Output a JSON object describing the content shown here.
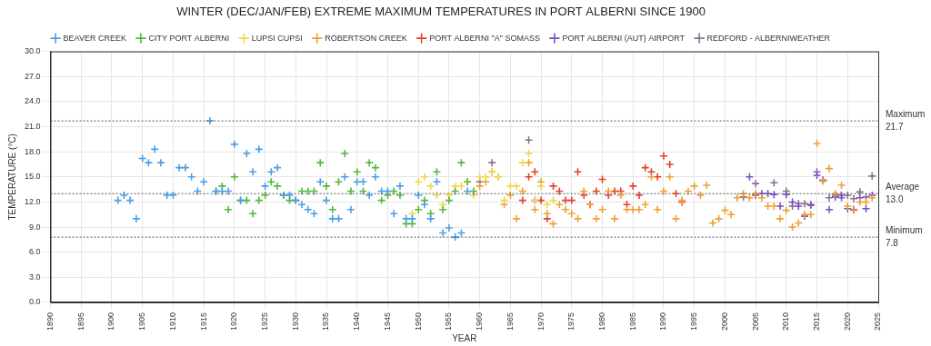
{
  "chart_data": {
    "type": "scatter",
    "title": "WINTER (DEC/JAN/FEB) EXTREME MAXIMUM TEMPERATURES IN PORT ALBERNI SINCE 1900",
    "x_label": "YEAR",
    "y_label": "TEMPERATURE (°C)",
    "marker": "cross",
    "grid": true,
    "legend": "top",
    "xlim": [
      1890,
      2025
    ],
    "xticks": [
      1890,
      1895,
      1900,
      1905,
      1910,
      1915,
      1920,
      1925,
      1930,
      1935,
      1940,
      1945,
      1950,
      1955,
      1960,
      1965,
      1970,
      1975,
      1980,
      1985,
      1990,
      1995,
      2000,
      2005,
      2010,
      2015,
      2020,
      2025
    ],
    "ylim": [
      0,
      30
    ],
    "yticks": [
      {
        "value": 0,
        "label": "0.0"
      },
      {
        "value": 3,
        "label": "3.0"
      },
      {
        "value": 6,
        "label": "6.0"
      },
      {
        "value": 9,
        "label": "9.0"
      },
      {
        "value": 12,
        "label": "12.0"
      },
      {
        "value": 15,
        "label": "15.0"
      },
      {
        "value": 18,
        "label": "18.0"
      },
      {
        "value": 21,
        "label": "21.0"
      },
      {
        "value": 24,
        "label": "24.0"
      },
      {
        "value": 27,
        "label": "27.0"
      },
      {
        "value": 30,
        "label": "30.0"
      }
    ],
    "annotations": [
      {
        "name": "Maximum",
        "value": 21.7,
        "label": "21.7"
      },
      {
        "name": "Average",
        "value": 13,
        "label": "13.0"
      },
      {
        "name": "Minimum",
        "value": 7.8,
        "label": "7.8"
      }
    ],
    "series": [
      {
        "name": "BEAVER CREEK",
        "color": "#4a9fe8",
        "x": [
          1901,
          1902,
          1903,
          1904,
          1905,
          1906,
          1907,
          1908,
          1909,
          1910,
          1911,
          1912,
          1913,
          1914,
          1915,
          1916,
          1917,
          1918,
          1919,
          1920,
          1921,
          1922,
          1923,
          1924,
          1925,
          1926,
          1927,
          1928,
          1929,
          1930,
          1931,
          1932,
          1933,
          1934,
          1935,
          1936,
          1937,
          1938,
          1939,
          1940,
          1941,
          1942,
          1943,
          1944,
          1945,
          1946,
          1947,
          1948,
          1949,
          1950,
          1951,
          1952,
          1953,
          1954,
          1955,
          1956,
          1957,
          1958
        ],
        "values": [
          12.2,
          12.8,
          12.2,
          10.0,
          17.2,
          16.7,
          18.3,
          16.7,
          12.8,
          12.8,
          16.1,
          16.1,
          15.0,
          13.3,
          14.4,
          21.7,
          13.3,
          13.3,
          13.3,
          18.9,
          12.2,
          17.8,
          15.6,
          18.3,
          13.9,
          15.6,
          16.1,
          12.8,
          12.8,
          12.2,
          11.7,
          11.1,
          10.6,
          14.4,
          12.2,
          10.0,
          10.0,
          15.0,
          11.1,
          14.4,
          14.4,
          12.8,
          15.0,
          13.3,
          13.3,
          10.6,
          13.9,
          10.0,
          10.0,
          12.8,
          11.7,
          10.0,
          14.4,
          8.3,
          8.9,
          7.8,
          8.3,
          13.3
        ]
      },
      {
        "name": "CITY PORT ALBERNI",
        "color": "#55b83c",
        "x": [
          1917,
          1918,
          1919,
          1920,
          1921,
          1922,
          1923,
          1924,
          1925,
          1926,
          1927,
          1928,
          1929,
          1930,
          1931,
          1932,
          1933,
          1934,
          1935,
          1936,
          1937,
          1938,
          1939,
          1940,
          1941,
          1942,
          1943,
          1944,
          1945,
          1946,
          1947,
          1948,
          1949,
          1950,
          1951,
          1952,
          1953,
          1954,
          1955,
          1956,
          1957,
          1958,
          1959
        ],
        "values": [
          13.3,
          13.9,
          11.1,
          15.0,
          12.2,
          12.2,
          10.6,
          12.2,
          12.8,
          14.4,
          13.9,
          12.8,
          12.2,
          12.2,
          13.3,
          13.3,
          13.3,
          16.7,
          13.9,
          11.1,
          14.4,
          17.8,
          13.3,
          15.6,
          13.3,
          16.7,
          16.1,
          12.2,
          12.8,
          13.3,
          12.8,
          9.4,
          9.4,
          11.1,
          12.2,
          10.6,
          15.6,
          11.1,
          12.2,
          13.3,
          16.7,
          14.4,
          13.3
        ]
      },
      {
        "name": "LUPSI CUPSI",
        "color": "#f2d64b",
        "x": [
          1949,
          1950,
          1951,
          1952,
          1953,
          1954,
          1955,
          1956,
          1957,
          1958,
          1959,
          1960,
          1961,
          1962,
          1963,
          1964,
          1965,
          1966,
          1967,
          1968,
          1969,
          1970,
          1971,
          1972
        ],
        "values": [
          10.6,
          14.4,
          15.0,
          13.9,
          12.8,
          11.7,
          12.8,
          13.9,
          13.9,
          14.4,
          12.8,
          15.0,
          15.0,
          15.6,
          15.0,
          12.2,
          13.9,
          13.9,
          16.7,
          17.8,
          12.2,
          13.9,
          11.7,
          12.2
        ]
      },
      {
        "name": "ROBERTSON CREEK",
        "color": "#f0a030",
        "x": [
          1960,
          1961,
          1962,
          1963,
          1964,
          1965,
          1966,
          1967,
          1968,
          1969,
          1970,
          1971,
          1972,
          1973,
          1974,
          1975,
          1976,
          1977,
          1978,
          1979,
          1980,
          1981,
          1982,
          1983,
          1984,
          1985,
          1986,
          1987,
          1988,
          1989,
          1990,
          1991,
          1992,
          1993,
          1994,
          1995,
          1996,
          1997,
          1998,
          1999,
          2000,
          2001,
          2002,
          2003,
          2004,
          2005,
          2006,
          2007,
          2008,
          2009,
          2010,
          2011,
          2012,
          2013,
          2014,
          2015,
          2016,
          2017,
          2018,
          2019,
          2020,
          2021,
          2022,
          2023,
          2024
        ],
        "values": [
          13.9,
          14.4,
          15.6,
          15.0,
          11.7,
          12.8,
          10.0,
          13.3,
          16.7,
          11.1,
          14.4,
          10.6,
          9.4,
          11.7,
          11.1,
          10.6,
          10.0,
          13.3,
          11.7,
          10.0,
          11.1,
          13.3,
          10.0,
          12.8,
          11.1,
          11.1,
          11.1,
          11.7,
          15.0,
          11.1,
          13.3,
          15.0,
          10.0,
          12.2,
          13.3,
          13.9,
          12.8,
          14.0,
          9.5,
          10.0,
          11.0,
          10.5,
          12.5,
          13.0,
          12.5,
          13.0,
          12.5,
          11.5,
          11.5,
          10.0,
          11.0,
          9.0,
          9.5,
          10.5,
          10.5,
          19.0,
          14.5,
          16.0,
          13.0,
          14.0,
          11.5,
          11.0,
          12.0,
          12.0,
          12.5
        ]
      },
      {
        "name": "PORT ALBERNI \"A\" SOMASS",
        "color": "#e8402a",
        "x": [
          1967,
          1968,
          1969,
          1970,
          1971,
          1972,
          1973,
          1974,
          1975,
          1976,
          1977,
          1978,
          1979,
          1980,
          1981,
          1982,
          1983,
          1984,
          1985,
          1986,
          1987,
          1988,
          1989,
          1990,
          1991,
          1992,
          1993
        ],
        "values": [
          12.2,
          15.0,
          15.6,
          12.2,
          10.0,
          13.9,
          13.3,
          12.2,
          12.2,
          15.6,
          12.8,
          11.7,
          13.3,
          14.7,
          12.8,
          13.3,
          13.3,
          11.7,
          13.9,
          12.8,
          16.1,
          15.6,
          15.0,
          17.5,
          16.5,
          13.0,
          12.0
        ]
      },
      {
        "name": "PORT ALBERNI (AUT) AIRPORT",
        "color": "#7b4fc8",
        "x": [
          2004,
          2005,
          2006,
          2007,
          2008,
          2009,
          2010,
          2011,
          2012,
          2013,
          2014,
          2015,
          2016,
          2017,
          2018,
          2019,
          2020,
          2021,
          2022,
          2023,
          2024
        ],
        "values": [
          15.0,
          12.8,
          13.0,
          13.0,
          12.9,
          11.5,
          12.9,
          12.0,
          11.5,
          10.3,
          11.7,
          15.2,
          14.6,
          11.1,
          12.6,
          12.8,
          11.2,
          11.1,
          12.5,
          11.2,
          12.8
        ]
      },
      {
        "name": "REDFORD - ALBERNIWEATHER",
        "color": "#8a7090",
        "x": [
          1960,
          1962,
          1968,
          1969,
          2003,
          2005,
          2008,
          2010,
          2011,
          2012,
          2013,
          2014,
          2015,
          2016,
          2017,
          2018,
          2019,
          2020,
          2021,
          2022,
          2023,
          2024
        ],
        "values": [
          14.4,
          16.7,
          19.4,
          12.2,
          12.6,
          14.2,
          14.3,
          13.3,
          11.5,
          11.8,
          11.8,
          11.6,
          15.6,
          14.6,
          12.5,
          12.8,
          12.5,
          12.8,
          12.4,
          13.2,
          12.6,
          15.1
        ]
      }
    ]
  }
}
